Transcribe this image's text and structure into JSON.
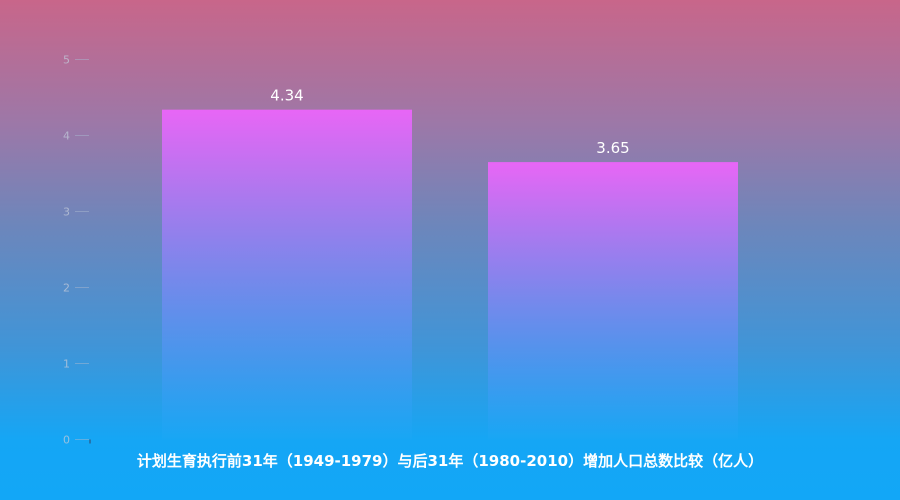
{
  "chart_data": {
    "type": "bar",
    "title": "计划生育执行前31年（1949-1979）与后31年（1980-2010）增加人口总数比较（亿人）",
    "categories": [
      "",
      ""
    ],
    "values": [
      4.34,
      3.65
    ],
    "value_labels": [
      "4.34",
      "3.65"
    ],
    "y_ticks": [
      "0",
      "1",
      "2",
      "3",
      "4",
      "5"
    ],
    "ylim": [
      0,
      5
    ],
    "grid": false,
    "legend": "none",
    "colors": {
      "bar_top": "#e866f6",
      "bar_bottom": "#1aa7f5",
      "label": "#ffffff",
      "tick_label": "#c2c9da",
      "tick_line": "#aab7cf"
    }
  }
}
